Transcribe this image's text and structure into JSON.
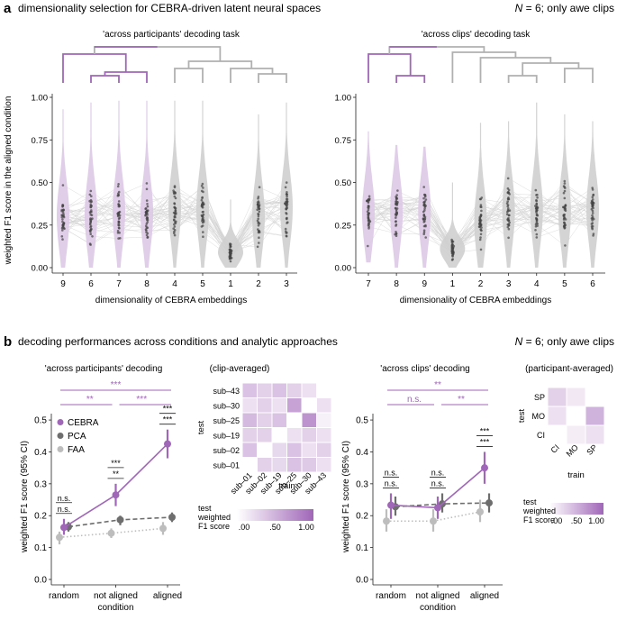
{
  "panel_a": {
    "letter": "a",
    "title": "dimensionality selection for CEBRA-driven latent neural spaces",
    "note_n": "N",
    "note_rest": " = 6; only awe clips",
    "ylabel": "weighted F1 score in the aligned condition",
    "colors": {
      "purple": "#a066b8",
      "purple_fill": "#ddc8e6",
      "gray": "#9a9a9a",
      "gray_fill": "#cfcfcf",
      "dot": "#444444"
    }
  },
  "panel_b": {
    "letter": "b",
    "title": "decoding performances across conditions and analytic approaches",
    "note_n": "N",
    "note_rest": " = 6; only awe clips",
    "ylabel": "weighted F1 score (95% CI)",
    "colorbar_label_1": "test",
    "colorbar_label_2": "weighted",
    "colorbar_label_3": "F1 score",
    "colorbar_ticks": [
      ".00",
      ".50",
      "1.00"
    ]
  },
  "chart_data": [
    {
      "type": "violin",
      "title": "'across participants' decoding task",
      "xlabel": "dimensionality of CEBRA embeddings",
      "ylabel": "weighted F1 score in the aligned condition",
      "categories": [
        "9",
        "6",
        "7",
        "8",
        "4",
        "5",
        "1",
        "2",
        "3"
      ],
      "highlight": [
        true,
        true,
        true,
        true,
        false,
        false,
        false,
        false,
        false
      ],
      "medians": [
        0.3,
        0.31,
        0.33,
        0.32,
        0.35,
        0.34,
        0.09,
        0.3,
        0.35
      ],
      "ranges": [
        [
          0.0,
          0.93
        ],
        [
          0.0,
          0.97
        ],
        [
          0.0,
          0.98
        ],
        [
          0.0,
          0.98
        ],
        [
          0.0,
          0.98
        ],
        [
          0.0,
          0.98
        ],
        [
          0.0,
          0.4
        ],
        [
          0.0,
          0.9
        ],
        [
          0.0,
          0.97
        ]
      ],
      "yticks": [
        "0.00",
        "0.25",
        "0.50",
        "0.75",
        "1.00"
      ],
      "ylim": [
        0,
        1.0
      ]
    },
    {
      "type": "violin",
      "title": "'across clips' decoding task",
      "xlabel": "dimensionality of CEBRA embeddings",
      "categories": [
        "7",
        "8",
        "9",
        "1",
        "2",
        "3",
        "4",
        "5",
        "6"
      ],
      "highlight": [
        true,
        true,
        true,
        false,
        false,
        false,
        false,
        false,
        false
      ],
      "medians": [
        0.32,
        0.33,
        0.33,
        0.11,
        0.27,
        0.33,
        0.34,
        0.33,
        0.34
      ],
      "ranges": [
        [
          0.03,
          0.8
        ],
        [
          0.0,
          0.72
        ],
        [
          0.0,
          0.71
        ],
        [
          0.0,
          0.5
        ],
        [
          0.0,
          0.85
        ],
        [
          0.0,
          0.86
        ],
        [
          0.0,
          0.97
        ],
        [
          0.0,
          0.9
        ],
        [
          0.0,
          0.86
        ]
      ],
      "yticks": [
        "0.00",
        "0.25",
        "0.50",
        "0.75",
        "1.00"
      ],
      "ylim": [
        0,
        1.0
      ]
    },
    {
      "type": "line",
      "title": "'across participants' decoding",
      "xlabel": "condition",
      "ylabel": "weighted F1 score (95% CI)",
      "categories": [
        "random",
        "not aligned",
        "aligned"
      ],
      "yticks": [
        "0.0",
        "0.1",
        "0.2",
        "0.3",
        "0.4",
        "0.5"
      ],
      "ylim": [
        0,
        0.52
      ],
      "series": [
        {
          "name": "CEBRA",
          "values": [
            0.163,
            0.265,
            0.425
          ],
          "ci": [
            [
              0.14,
              0.19
            ],
            [
              0.23,
              0.3
            ],
            [
              0.38,
              0.47
            ]
          ],
          "style": "solid"
        },
        {
          "name": "PCA",
          "values": [
            0.165,
            0.187,
            0.195
          ],
          "ci": [
            [
              0.15,
              0.18
            ],
            [
              0.17,
              0.2
            ],
            [
              0.18,
              0.21
            ]
          ],
          "style": "dashed"
        },
        {
          "name": "FAA",
          "values": [
            0.132,
            0.145,
            0.16
          ],
          "ci": [
            [
              0.11,
              0.15
            ],
            [
              0.13,
              0.16
            ],
            [
              0.14,
              0.18
            ]
          ],
          "style": "dotted"
        }
      ],
      "significance": {
        "between_conditions": [
          {
            "label": "***"
          },
          {
            "label": "**"
          },
          {
            "label": "***"
          }
        ],
        "within_condition": [
          [
            "n.s.",
            "n.s."
          ],
          [
            "**",
            "***"
          ],
          [
            "***",
            "***"
          ]
        ]
      }
    },
    {
      "type": "line",
      "title": "'across clips' decoding",
      "xlabel": "condition",
      "ylabel": "weighted F1 score (95% CI)",
      "categories": [
        "random",
        "not aligned",
        "aligned"
      ],
      "yticks": [
        "0.0",
        "0.1",
        "0.2",
        "0.3",
        "0.4",
        "0.5"
      ],
      "ylim": [
        0,
        0.52
      ],
      "series": [
        {
          "name": "CEBRA",
          "values": [
            0.233,
            0.225,
            0.35
          ],
          "ci": [
            [
              0.19,
              0.27
            ],
            [
              0.19,
              0.26
            ],
            [
              0.3,
              0.4
            ]
          ],
          "style": "solid"
        },
        {
          "name": "PCA",
          "values": [
            0.228,
            0.237,
            0.24
          ],
          "ci": [
            [
              0.2,
              0.26
            ],
            [
              0.21,
              0.27
            ],
            [
              0.21,
              0.27
            ]
          ],
          "style": "dashed"
        },
        {
          "name": "FAA",
          "values": [
            0.183,
            0.183,
            0.212
          ],
          "ci": [
            [
              0.15,
              0.22
            ],
            [
              0.15,
              0.22
            ],
            [
              0.18,
              0.25
            ]
          ],
          "style": "dotted"
        }
      ],
      "significance": {
        "between_conditions": [
          {
            "label": "**"
          },
          {
            "label": "n.s."
          },
          {
            "label": "**"
          }
        ],
        "within_condition": [
          [
            "n.s.",
            "n.s."
          ],
          [
            "n.s.",
            "n.s."
          ],
          [
            "***",
            "***"
          ]
        ]
      }
    },
    {
      "type": "heatmap",
      "title": "(clip-averaged)",
      "xlabel": "train",
      "ylabel": "test",
      "rows": [
        "sub–43",
        "sub–30",
        "sub–25",
        "sub–19",
        "sub–02",
        "sub–01"
      ],
      "cols": [
        "sub–01",
        "sub–02",
        "sub–19",
        "sub–25",
        "sub–30",
        "sub–43"
      ],
      "values": [
        [
          0.4,
          0.3,
          0.4,
          0.3,
          0.2,
          null
        ],
        [
          0.2,
          0.3,
          0.2,
          0.6,
          null,
          0.2
        ],
        [
          0.45,
          0.3,
          0.4,
          null,
          0.7,
          0.1
        ],
        [
          0.3,
          0.3,
          null,
          0.2,
          0.3,
          0.2
        ],
        [
          0.4,
          null,
          0.25,
          0.4,
          0.2,
          0.3
        ],
        [
          null,
          0.3,
          0.25,
          0.4,
          0.35,
          0.2
        ]
      ]
    },
    {
      "type": "heatmap",
      "title": "(participant-averaged)",
      "xlabel": "train",
      "ylabel": "test",
      "rows": [
        "SP",
        "MO",
        "CI"
      ],
      "cols": [
        "CI",
        "MO",
        "SP"
      ],
      "values": [
        [
          0.3,
          0.15,
          null
        ],
        [
          0.2,
          null,
          0.5
        ],
        [
          null,
          0.12,
          0.2
        ]
      ]
    }
  ]
}
